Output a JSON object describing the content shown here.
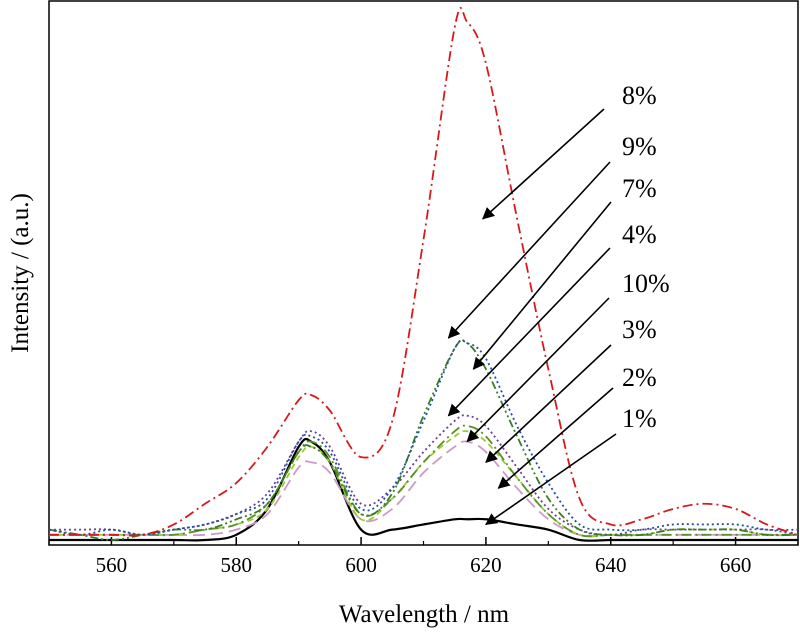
{
  "chart_data": {
    "type": "line",
    "xlabel": "Wavelength / nm",
    "ylabel": "Intensity / (a.u.)",
    "xlim": [
      550,
      670
    ],
    "ylim": [
      0,
      100
    ],
    "x_ticks": [
      560,
      580,
      600,
      620,
      640,
      660
    ],
    "y_ticks_shown": false,
    "grid": false,
    "legend": "arrow annotations pointing to each curve",
    "x": [
      550,
      555,
      560,
      565,
      570,
      575,
      580,
      585,
      590,
      592,
      595,
      600,
      605,
      610,
      615,
      617,
      620,
      625,
      630,
      635,
      640,
      645,
      650,
      655,
      660,
      665,
      670
    ],
    "series": [
      {
        "name": "8%",
        "color": "#d7191c",
        "dash": "dash-dot",
        "values": [
          1,
          1,
          1,
          1,
          3,
          7,
          11,
          18,
          27,
          28,
          25,
          16,
          23,
          58,
          99,
          100,
          92,
          62,
          33,
          8,
          3,
          4,
          6,
          7,
          6,
          3,
          1
        ]
      },
      {
        "name": "9%",
        "color": "#1f4fa0",
        "dash": "dotted",
        "values": [
          2,
          1,
          2,
          1,
          2,
          3,
          5,
          8,
          19,
          20,
          17,
          6,
          10,
          23,
          37,
          38,
          35,
          22,
          11,
          3,
          2,
          2,
          3,
          3,
          3,
          2,
          2
        ]
      },
      {
        "name": "7%",
        "color": "#3a7d22",
        "dash": "dash-dot-dot",
        "values": [
          2,
          1,
          0,
          1,
          2,
          2,
          4,
          7,
          17,
          18,
          15,
          5,
          9,
          24,
          37,
          38,
          33,
          20,
          8,
          2,
          1,
          1,
          2,
          2,
          2,
          1,
          1
        ]
      },
      {
        "name": "4%",
        "color": "#6a3fa0",
        "dash": "dotted",
        "values": [
          2,
          2,
          2,
          1,
          2,
          3,
          5,
          9,
          19,
          21,
          18,
          7,
          10,
          17,
          23,
          24,
          22,
          14,
          6,
          2,
          1,
          2,
          2,
          2,
          2,
          2,
          1
        ]
      },
      {
        "name": "10%",
        "color": "#5b8f2b",
        "dash": "dash-dot",
        "values": [
          1,
          1,
          1,
          1,
          1,
          2,
          3,
          7,
          17,
          19,
          16,
          5,
          8,
          15,
          21,
          22,
          20,
          12,
          5,
          1,
          1,
          1,
          1,
          1,
          1,
          1,
          1
        ]
      },
      {
        "name": "3%",
        "color": "#9acd32",
        "dash": "dashed",
        "values": [
          1,
          1,
          1,
          1,
          1,
          2,
          3,
          6,
          16,
          18,
          15,
          4,
          8,
          15,
          20,
          21,
          19,
          12,
          5,
          1,
          1,
          1,
          2,
          2,
          2,
          1,
          1
        ]
      },
      {
        "name": "2%",
        "color": "#cc99cc",
        "dash": "long-dash",
        "values": [
          1,
          1,
          1,
          1,
          1,
          1,
          2,
          5,
          14,
          15,
          13,
          4,
          6,
          13,
          18,
          19,
          17,
          10,
          4,
          1,
          1,
          1,
          1,
          1,
          1,
          1,
          1
        ]
      },
      {
        "name": "1%",
        "color": "#000000",
        "dash": "solid",
        "values": [
          0,
          0,
          0,
          0,
          0,
          0,
          1,
          6,
          18,
          19,
          15,
          2,
          2,
          3,
          4,
          4,
          4,
          3,
          2,
          0,
          0,
          0,
          0,
          0,
          0,
          0,
          0
        ]
      }
    ],
    "annotations": [
      {
        "label": "8%",
        "target_x": 619.5,
        "target_y": 62
      },
      {
        "label": "9%",
        "target_x": 614,
        "target_y": 39
      },
      {
        "label": "7%",
        "target_x": 618,
        "target_y": 33
      },
      {
        "label": "4%",
        "target_x": 614,
        "target_y": 24
      },
      {
        "label": "10%",
        "target_x": 617,
        "target_y": 19
      },
      {
        "label": "3%",
        "target_x": 620,
        "target_y": 15
      },
      {
        "label": "2%",
        "target_x": 622,
        "target_y": 10
      },
      {
        "label": "1%",
        "target_x": 620,
        "target_y": 3
      }
    ]
  }
}
